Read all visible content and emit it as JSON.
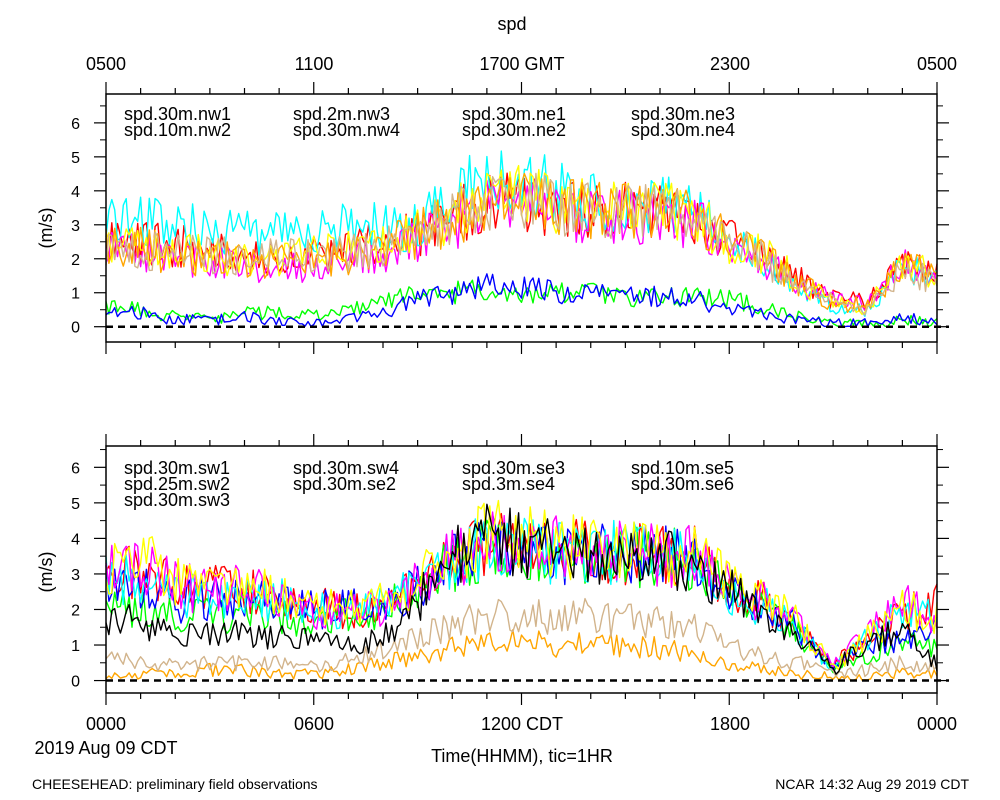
{
  "figure": {
    "title": "spd",
    "top_axis_ticks": [
      "0500",
      "1100",
      "1700 GMT",
      "2300",
      "0500"
    ],
    "bottom_axis_ticks": [
      "0000",
      "0600",
      "1200 CDT",
      "1800",
      "0000"
    ],
    "date_label": "2019 Aug 09 CDT",
    "x_label": "Time(HHMM), tic=1HR",
    "footer_left": "CHEESEHEAD: preliminary field observations",
    "footer_right": "NCAR 14:32 Aug 29 2019 CDT"
  },
  "chart_data": [
    {
      "type": "line",
      "title": "spd (upper panel)",
      "ylabel": "(m/s)",
      "xlabel": "Time(HHMM), tic=1HR",
      "x_range_hours": [
        0,
        24
      ],
      "ylim": [
        -0.45,
        6.85
      ],
      "y_ticks": [
        "0",
        "1",
        "2",
        "3",
        "4",
        "5",
        "6"
      ],
      "zero_line": true,
      "series": [
        {
          "name": "spd.30m.nw1",
          "color": "#ff0000",
          "hours": [
            0,
            1,
            2,
            3,
            4,
            5,
            6,
            7,
            8,
            9,
            10,
            11,
            12,
            13,
            14,
            15,
            16,
            17,
            18,
            19,
            20,
            21,
            22,
            23,
            24
          ],
          "values": [
            2.6,
            2.5,
            2.4,
            2.2,
            2.0,
            2.0,
            2.1,
            2.3,
            2.5,
            2.7,
            3.2,
            3.6,
            3.7,
            3.5,
            3.4,
            3.4,
            3.3,
            3.2,
            2.6,
            2.0,
            1.4,
            0.8,
            0.7,
            2.0,
            1.5
          ]
        },
        {
          "name": "spd.10m.nw2",
          "color": "#00ff00",
          "hours": [
            0,
            1,
            2,
            3,
            4,
            5,
            6,
            7,
            8,
            9,
            10,
            11,
            12,
            13,
            14,
            15,
            16,
            17,
            18,
            19,
            20,
            21,
            22,
            23,
            24
          ],
          "values": [
            0.6,
            0.5,
            0.3,
            0.2,
            0.4,
            0.4,
            0.3,
            0.5,
            0.8,
            0.9,
            1.0,
            1.1,
            1.0,
            1.0,
            1.0,
            0.9,
            0.9,
            0.9,
            0.8,
            0.6,
            0.3,
            0.1,
            0.1,
            0.2,
            0.1
          ]
        },
        {
          "name": "spd.2m.nw3",
          "color": "#0000ff",
          "hours": [
            0,
            1,
            2,
            3,
            4,
            5,
            6,
            7,
            8,
            9,
            10,
            11,
            12,
            13,
            14,
            15,
            16,
            17,
            18,
            19,
            20,
            21,
            22,
            23,
            24
          ],
          "values": [
            0.5,
            0.4,
            0.2,
            0.2,
            0.3,
            0.2,
            0.1,
            0.2,
            0.4,
            0.8,
            1.0,
            1.2,
            1.2,
            1.0,
            1.0,
            0.9,
            0.9,
            0.8,
            0.5,
            0.4,
            0.2,
            0.1,
            0.1,
            0.3,
            0.1
          ]
        },
        {
          "name": "spd.30m.nw4",
          "color": "#00ffff",
          "hours": [
            0,
            1,
            2,
            3,
            4,
            5,
            6,
            7,
            8,
            9,
            10,
            11,
            12,
            13,
            14,
            15,
            16,
            17,
            18,
            19,
            20,
            21,
            22,
            23,
            24
          ],
          "values": [
            3.3,
            3.1,
            3.0,
            2.9,
            2.8,
            2.7,
            2.7,
            2.9,
            2.9,
            3.0,
            3.6,
            4.5,
            4.4,
            3.9,
            3.6,
            3.5,
            3.5,
            3.6,
            2.4,
            2.0,
            1.2,
            0.6,
            0.5,
            1.8,
            1.3
          ]
        },
        {
          "name": "spd.30m.ne1",
          "color": "#ff00ff",
          "hours": [
            0,
            1,
            2,
            3,
            4,
            5,
            6,
            7,
            8,
            9,
            10,
            11,
            12,
            13,
            14,
            15,
            16,
            17,
            18,
            19,
            20,
            21,
            22,
            23,
            24
          ],
          "values": [
            2.2,
            2.2,
            2.0,
            1.9,
            1.8,
            1.7,
            1.8,
            2.0,
            2.2,
            2.5,
            3.0,
            3.5,
            3.6,
            3.4,
            3.3,
            3.3,
            3.2,
            3.1,
            2.4,
            1.9,
            1.3,
            0.8,
            0.6,
            1.8,
            1.5
          ]
        },
        {
          "name": "spd.30m.ne2",
          "color": "#ffff00",
          "hours": [
            0,
            1,
            2,
            3,
            4,
            5,
            6,
            7,
            8,
            9,
            10,
            11,
            12,
            13,
            14,
            15,
            16,
            17,
            18,
            19,
            20,
            21,
            22,
            23,
            24
          ],
          "values": [
            2.4,
            2.3,
            2.2,
            2.1,
            2.0,
            2.0,
            2.1,
            2.2,
            2.4,
            2.8,
            3.3,
            3.8,
            3.9,
            3.6,
            3.5,
            3.4,
            3.4,
            3.3,
            2.5,
            2.1,
            1.4,
            0.7,
            0.6,
            1.9,
            1.5
          ]
        },
        {
          "name": "spd.30m.ne3",
          "color": "#ffa500",
          "hours": [
            0,
            1,
            2,
            3,
            4,
            5,
            6,
            7,
            8,
            9,
            10,
            11,
            12,
            13,
            14,
            15,
            16,
            17,
            18,
            19,
            20,
            21,
            22,
            23,
            24
          ],
          "values": [
            2.3,
            2.3,
            2.1,
            2.0,
            1.9,
            1.9,
            2.0,
            2.1,
            2.3,
            2.7,
            3.2,
            3.6,
            3.7,
            3.5,
            3.4,
            3.4,
            3.3,
            3.2,
            2.5,
            2.0,
            1.3,
            0.7,
            0.6,
            1.9,
            1.4
          ]
        },
        {
          "name": "spd.30m.ne4",
          "color": "#d2b48c",
          "hours": [
            0,
            1,
            2,
            3,
            4,
            5,
            6,
            7,
            8,
            9,
            10,
            11,
            12,
            13,
            14,
            15,
            16,
            17,
            18,
            19,
            20,
            21,
            22,
            23,
            24
          ],
          "values": [
            2.3,
            2.3,
            2.2,
            2.1,
            2.1,
            2.1,
            2.1,
            2.2,
            2.4,
            2.7,
            3.2,
            3.6,
            3.7,
            3.5,
            3.4,
            3.4,
            3.3,
            3.2,
            2.5,
            2.0,
            1.3,
            0.7,
            0.5,
            1.8,
            1.2
          ]
        }
      ]
    },
    {
      "type": "line",
      "title": "spd (lower panel)",
      "ylabel": "(m/s)",
      "xlabel": "Time(HHMM), tic=1HR",
      "x_range_hours": [
        0,
        24
      ],
      "ylim": [
        -0.35,
        6.6
      ],
      "y_ticks": [
        "0",
        "1",
        "2",
        "3",
        "4",
        "5",
        "6"
      ],
      "zero_line": true,
      "series": [
        {
          "name": "spd.30m.sw1",
          "color": "#ff0000",
          "hours": [
            0,
            1,
            2,
            3,
            4,
            5,
            6,
            7,
            8,
            9,
            10,
            11,
            12,
            13,
            14,
            15,
            16,
            17,
            18,
            19,
            20,
            21,
            22,
            23,
            24
          ],
          "values": [
            3.0,
            3.1,
            2.7,
            2.6,
            2.6,
            2.4,
            2.1,
            2.0,
            2.1,
            2.6,
            3.4,
            3.9,
            3.9,
            3.7,
            3.6,
            3.6,
            3.5,
            3.5,
            2.6,
            2.2,
            1.6,
            0.4,
            1.2,
            1.9,
            2.2
          ]
        },
        {
          "name": "spd.25m.sw2",
          "color": "#00ff00",
          "hours": [
            0,
            1,
            2,
            3,
            4,
            5,
            6,
            7,
            8,
            9,
            10,
            11,
            12,
            13,
            14,
            15,
            16,
            17,
            18,
            19,
            20,
            21,
            22,
            23,
            24
          ],
          "values": [
            2.2,
            2.0,
            1.8,
            1.8,
            1.9,
            1.8,
            1.7,
            1.8,
            2.0,
            2.6,
            3.3,
            3.7,
            3.7,
            3.6,
            3.5,
            3.5,
            3.5,
            3.3,
            2.4,
            2.0,
            1.3,
            0.3,
            0.7,
            1.2,
            0.9
          ]
        },
        {
          "name": "spd.30m.sw3",
          "color": "#0000ff",
          "hours": [
            0,
            1,
            2,
            3,
            4,
            5,
            6,
            7,
            8,
            9,
            10,
            11,
            12,
            13,
            14,
            15,
            16,
            17,
            18,
            19,
            20,
            21,
            22,
            23,
            24
          ],
          "values": [
            2.6,
            2.6,
            2.2,
            2.3,
            2.4,
            2.2,
            2.0,
            2.0,
            2.1,
            2.7,
            3.5,
            3.8,
            3.8,
            3.6,
            3.6,
            3.5,
            3.5,
            3.4,
            2.6,
            2.2,
            1.4,
            0.4,
            1.0,
            1.2,
            1.6
          ]
        },
        {
          "name": "spd.30m.sw4",
          "color": "#00ffff",
          "hours": [
            0,
            1,
            2,
            3,
            4,
            5,
            6,
            7,
            8,
            9,
            10,
            11,
            12,
            13,
            14,
            15,
            16,
            17,
            18,
            19,
            20,
            21,
            22,
            23,
            24
          ],
          "values": [
            2.8,
            2.8,
            2.4,
            2.3,
            2.3,
            2.3,
            2.0,
            1.9,
            2.1,
            2.6,
            3.4,
            3.8,
            3.8,
            3.6,
            3.6,
            3.6,
            3.5,
            3.4,
            2.4,
            2.1,
            1.4,
            0.4,
            1.2,
            2.0,
            1.9
          ]
        },
        {
          "name": "spd.30m.se2",
          "color": "#ff00ff",
          "hours": [
            0,
            1,
            2,
            3,
            4,
            5,
            6,
            7,
            8,
            9,
            10,
            11,
            12,
            13,
            14,
            15,
            16,
            17,
            18,
            19,
            20,
            21,
            22,
            23,
            24
          ],
          "values": [
            3.0,
            3.2,
            2.7,
            2.5,
            2.6,
            2.4,
            2.0,
            2.0,
            2.1,
            2.7,
            3.4,
            3.8,
            3.8,
            3.7,
            3.6,
            3.6,
            3.5,
            3.5,
            2.6,
            2.2,
            1.5,
            0.4,
            1.3,
            2.2,
            1.8
          ]
        },
        {
          "name": "spd.30m.se3",
          "color": "#ffff00",
          "hours": [
            0,
            1,
            2,
            3,
            4,
            5,
            6,
            7,
            8,
            9,
            10,
            11,
            12,
            13,
            14,
            15,
            16,
            17,
            18,
            19,
            20,
            21,
            22,
            23,
            24
          ],
          "values": [
            3.1,
            3.5,
            2.8,
            2.6,
            2.7,
            2.5,
            2.1,
            2.0,
            2.2,
            2.8,
            3.5,
            4.1,
            4.0,
            3.8,
            3.7,
            3.7,
            3.6,
            3.5,
            2.7,
            2.3,
            1.6,
            0.4,
            1.2,
            2.0,
            1.8
          ]
        },
        {
          "name": "spd.3m.se4",
          "color": "#ffa500",
          "hours": [
            0,
            1,
            2,
            3,
            4,
            5,
            6,
            7,
            8,
            9,
            10,
            11,
            12,
            13,
            14,
            15,
            16,
            17,
            18,
            19,
            20,
            21,
            22,
            23,
            24
          ],
          "values": [
            0.1,
            0.2,
            0.2,
            0.3,
            0.3,
            0.2,
            0.2,
            0.3,
            0.5,
            0.7,
            0.9,
            1.0,
            1.1,
            1.0,
            1.0,
            1.0,
            0.9,
            0.8,
            0.4,
            0.3,
            0.2,
            0.1,
            0.1,
            0.2,
            0.2
          ]
        },
        {
          "name": "spd.10m.se5",
          "color": "#d2b48c",
          "hours": [
            0,
            1,
            2,
            3,
            4,
            5,
            6,
            7,
            8,
            9,
            10,
            11,
            12,
            13,
            14,
            15,
            16,
            17,
            18,
            19,
            20,
            21,
            22,
            23,
            24
          ],
          "values": [
            0.6,
            0.5,
            0.4,
            0.5,
            0.5,
            0.5,
            0.4,
            0.6,
            0.9,
            1.2,
            1.6,
            1.8,
            1.9,
            1.8,
            1.8,
            1.7,
            1.6,
            1.5,
            0.9,
            0.7,
            0.5,
            0.2,
            0.3,
            0.5,
            0.4
          ]
        },
        {
          "name": "spd.30m.se6",
          "color": "#000000",
          "hours": [
            0,
            1,
            2,
            3,
            4,
            5,
            6,
            7,
            8,
            9,
            10,
            11,
            12,
            13,
            14,
            15,
            16,
            17,
            18,
            19,
            20,
            21,
            22,
            23,
            24
          ],
          "values": [
            1.8,
            1.6,
            1.3,
            1.3,
            1.3,
            1.2,
            1.1,
            1.0,
            1.2,
            2.2,
            3.4,
            4.0,
            3.9,
            3.6,
            3.6,
            3.5,
            3.4,
            3.3,
            2.5,
            2.0,
            1.3,
            0.3,
            1.1,
            1.5,
            0.4
          ]
        }
      ]
    }
  ]
}
